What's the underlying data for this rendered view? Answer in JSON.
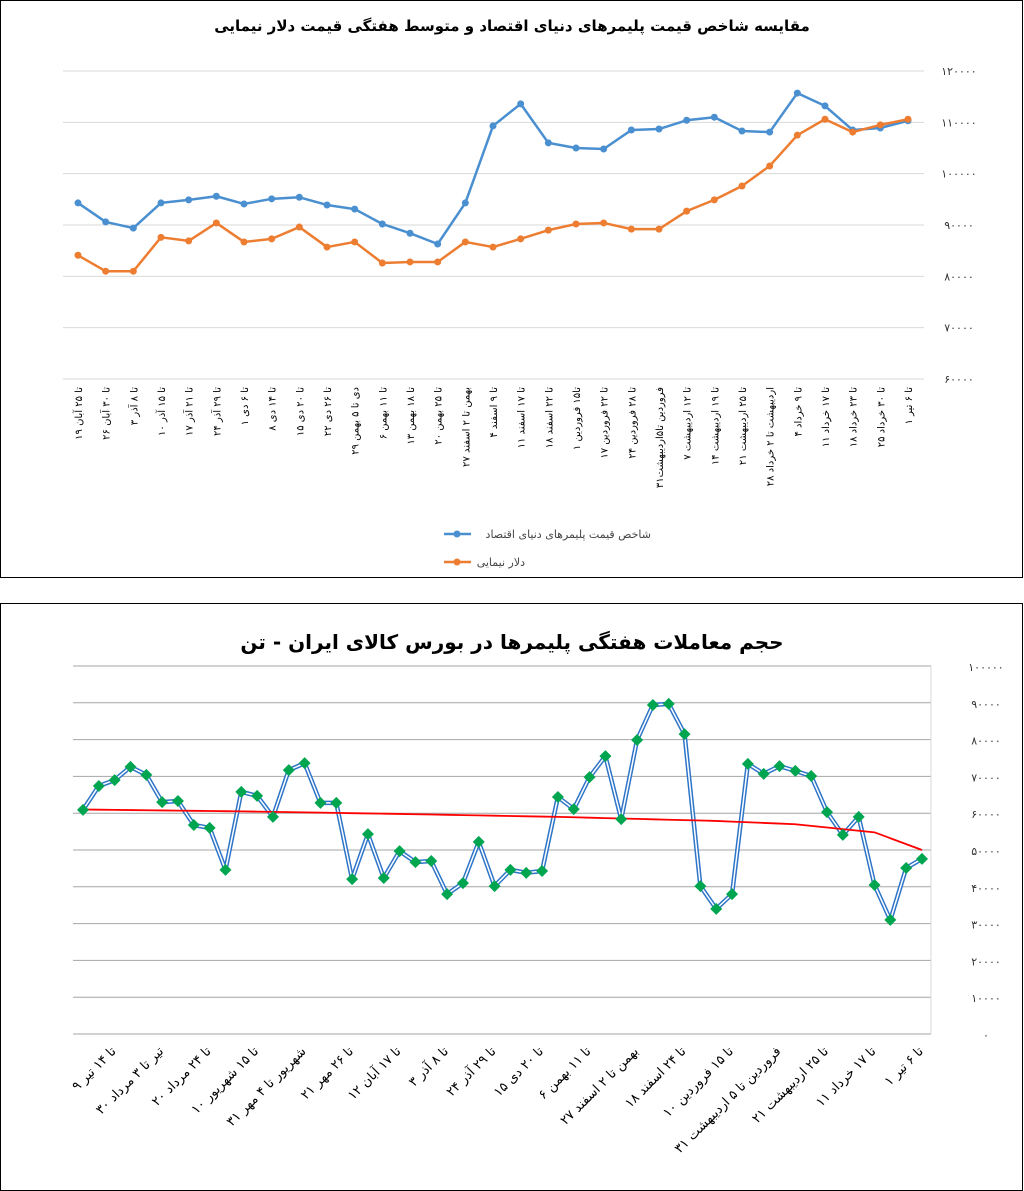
{
  "chart_data": [
    {
      "type": "line",
      "title": "مقایسه شاخص قیمت پلیمرهای دنیای اقتصاد و متوسط هفتگی قیمت دلار نیمایی",
      "ylim": [
        60000,
        120000
      ],
      "yticks": [
        "۶۰۰۰۰",
        "۷۰۰۰۰",
        "۸۰۰۰۰",
        "۹۰۰۰۰",
        "۱۰۰۰۰۰",
        "۱۱۰۰۰۰",
        "۱۲۰۰۰۰"
      ],
      "grid": true,
      "legend": "bottom",
      "categories": [
        "۱۹ تا ۲۵ آبان",
        "۲۶ تا ۳۰ آبان",
        "۳ تا ۸ آذر",
        "۱۰ تا ۱۵ آذر",
        "۱۷ تا ۲۱ آذر",
        "۲۴ تا ۲۹ آذر",
        "۱ تا ۶ دی",
        "۸ تا ۱۴ دی",
        "۱۵ تا ۲۰ دی",
        "۲۲ تا ۲۶ دی",
        "۲۹ دی تا ۵ بهمن",
        "۶ تا ۱۱ بهمن",
        "۱۳ تا ۱۸ بهمن",
        "۲۰ تا ۲۵ بهمن",
        "۲۷ بهمن تا ۲ اسفند",
        "۴ تا ۹ اسفند",
        "۱۱ تا ۱۷ اسفند",
        "۱۸ تا ۲۲ اسفند",
        "۱ تا۱۵ فروردین",
        "۱۷ تا ۲۲ فروردین",
        "۲۴ تا ۲۸ فروردین",
        "۳۱فروردین تا۵اردیبهشت",
        "۷ تا ۱۲ اردیبهشت",
        "۱۴ تا ۱۹ اردیبهشت",
        "۲۱ تا ۲۵ اردیبهشت",
        "۲۸ اردیبهشت تا ۲ خرداد",
        "۴ تا ۹ خرداد",
        "۱۱ تا ۱۷ خرداد",
        "۱۸ تا ۲۳ خرداد",
        "۲۵ تا ۳۰ خرداد",
        "۱ تا ۶ تیر"
      ],
      "series": [
        {
          "name": "شاخص قیمت پلیمرهای دنیای اقتصاد",
          "color": "#4a8fd0",
          "values": [
            94300,
            90600,
            89400,
            94300,
            94900,
            95600,
            94100,
            95100,
            95400,
            93900,
            93100,
            90200,
            88400,
            86300,
            94300,
            109300,
            113600,
            106000,
            105000,
            104800,
            108500,
            108700,
            110400,
            111000,
            108300,
            108100,
            115700,
            113200,
            108500,
            108900,
            110300
          ]
        },
        {
          "name": "دلار نیمایی",
          "color": "#ed7d31",
          "values": [
            84100,
            81000,
            81000,
            87600,
            86900,
            90400,
            86700,
            87300,
            89600,
            85700,
            86700,
            82600,
            82800,
            82800,
            86700,
            85700,
            87300,
            89000,
            90200,
            90400,
            89200,
            89200,
            92700,
            94900,
            97600,
            101500,
            107500,
            110600,
            108100,
            109500,
            110600
          ]
        }
      ]
    },
    {
      "type": "line",
      "title": "حجم معاملات هفتگی پلیمرها در بورس کالای ایران - تن",
      "ylim": [
        0,
        100000
      ],
      "yticks": [
        "۰",
        "۱۰۰۰۰",
        "۲۰۰۰۰",
        "۳۰۰۰۰",
        "۴۰۰۰۰",
        "۵۰۰۰۰",
        "۶۰۰۰۰",
        "۷۰۰۰۰",
        "۸۰۰۰۰",
        "۹۰۰۰۰",
        "۱۰۰۰۰۰"
      ],
      "grid": true,
      "category_labels": [
        "۹ تا ۱۴ تیر",
        "۳۰ تیر تا ۳ مرداد",
        "۲۰ تا ۲۴ مرداد",
        "۱۰ تا ۱۵ شهریور",
        "۳۱ شهریور تا ۴ مهر",
        "۲۱ تا ۲۶ مهر",
        "۱۲ تا ۱۷ آبان",
        "۳ تا ۸ آذر",
        "۲۴ تا ۲۹ آذر",
        "۱۵ تا ۲۰ دی",
        "۶ تا ۱۱ بهمن",
        "۲۷ بهمن تا ۲ اسفند",
        "۱۸ تا ۲۴ اسفند",
        "۱۰ تا ۱۵ فروردین",
        "۳۱ فروردین تا ۵ اردیبهشت",
        "۲۱ تا ۲۵ اردیبهشت",
        "۱۱ تا ۱۷ خرداد",
        "۱ تا ۶ تیر"
      ],
      "series": [
        {
          "color": "#2e75c8",
          "marker_color": "#00a550",
          "values": [
            60900,
            67400,
            69000,
            72600,
            70400,
            63000,
            63300,
            56800,
            56000,
            44600,
            65800,
            64700,
            59000,
            71700,
            73600,
            62800,
            62800,
            42100,
            54300,
            42400,
            49700,
            46700,
            47000,
            38000,
            41000,
            52200,
            40200,
            44600,
            43800,
            44300,
            64400,
            61100,
            69800,
            75500,
            58400,
            79900,
            89400,
            89700,
            81500,
            40200,
            34000,
            38000,
            73400,
            70700,
            72800,
            71500,
            70100,
            60300,
            54100,
            59000,
            40500,
            31000,
            45100,
            47600
          ]
        }
      ],
      "trendline": {
        "color": "#ff0000",
        "type": "polynomial",
        "points": [
          [
            1,
            61000
          ],
          [
            11,
            60500
          ],
          [
            21,
            59800
          ],
          [
            31,
            59000
          ],
          [
            41,
            57900
          ],
          [
            46,
            57000
          ],
          [
            51,
            54800
          ],
          [
            54,
            50000
          ]
        ]
      }
    }
  ]
}
